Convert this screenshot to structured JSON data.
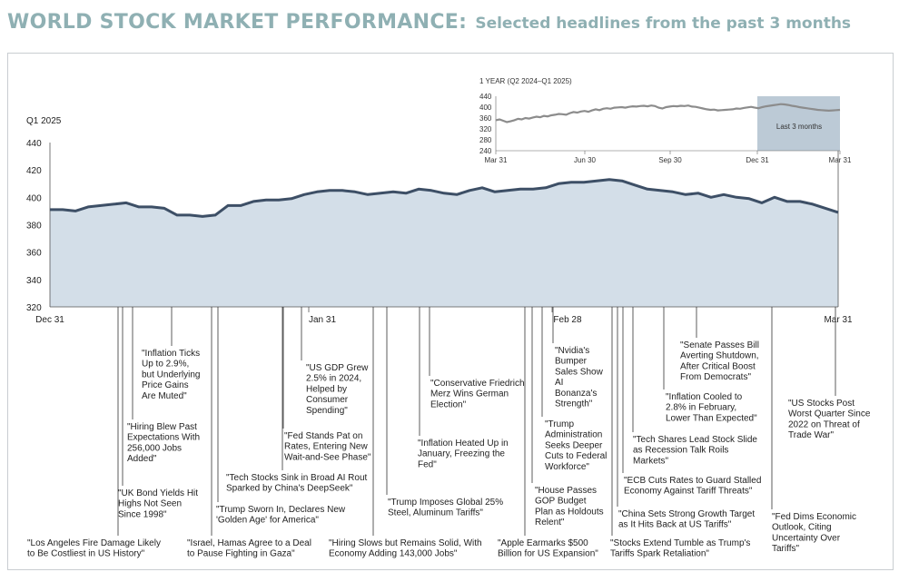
{
  "title": "WORLD STOCK MARKET PERFORMANCE:",
  "subtitle": "Selected headlines from the past 3 months",
  "chart_data": [
    {
      "type": "area",
      "series_label": "Q1 2025",
      "ylim": [
        320,
        440
      ],
      "yticks": [
        "440",
        "420",
        "400",
        "380",
        "360",
        "340",
        "320"
      ],
      "xticks": [
        "Dec 31",
        "Jan 31",
        "Feb 28",
        "Mar 31"
      ],
      "x": [
        0,
        1,
        2,
        3,
        4,
        5,
        6,
        7,
        8,
        9,
        10,
        11,
        12,
        13,
        14,
        15,
        16,
        17,
        18,
        19,
        20,
        21,
        22,
        23,
        24,
        25,
        26,
        27,
        28,
        29,
        30,
        31,
        32,
        33,
        34,
        35,
        36,
        37,
        38,
        39,
        40,
        41,
        42,
        43,
        44,
        45,
        46,
        47,
        48,
        49,
        50,
        51,
        52,
        53,
        54,
        55,
        56,
        57,
        58,
        59,
        60,
        61,
        62
      ],
      "values": [
        391,
        391,
        390,
        393,
        394,
        395,
        396,
        393,
        393,
        392,
        387,
        387,
        386,
        387,
        394,
        394,
        397,
        398,
        398,
        399,
        402,
        404,
        405,
        405,
        404,
        402,
        403,
        404,
        403,
        406,
        405,
        403,
        402,
        405,
        407,
        404,
        405,
        406,
        406,
        407,
        410,
        411,
        411,
        412,
        413,
        412,
        409,
        406,
        405,
        404,
        402,
        403,
        400,
        402,
        400,
        399,
        396,
        400,
        397,
        397,
        395,
        392,
        389
      ]
    },
    {
      "type": "line",
      "title": "1 YEAR (Q2 2024–Q1 2025)",
      "ylim": [
        240,
        440
      ],
      "yticks": [
        "440",
        "400",
        "360",
        "320",
        "280",
        "240"
      ],
      "xticks": [
        "Mar 31",
        "Jun 30",
        "Sep 30",
        "Dec 31",
        "Mar 31"
      ],
      "highlight_label": "Last 3 months",
      "values": [
        352,
        355,
        350,
        345,
        348,
        352,
        357,
        355,
        360,
        358,
        362,
        365,
        363,
        368,
        366,
        370,
        372,
        375,
        374,
        372,
        378,
        382,
        380,
        384,
        386,
        383,
        388,
        392,
        389,
        394,
        396,
        394,
        398,
        399,
        400,
        398,
        401,
        403,
        402,
        404,
        405,
        403,
        406,
        404,
        398,
        395,
        400,
        402,
        404,
        403,
        405,
        404,
        406,
        402,
        401,
        398,
        395,
        392,
        390,
        391,
        388,
        389,
        390,
        391,
        392,
        395,
        394,
        397,
        399,
        401,
        398,
        396,
        400,
        403,
        405,
        407,
        409,
        411,
        410,
        408,
        405,
        403,
        400,
        398,
        396,
        394,
        392,
        390,
        389,
        388,
        387,
        388,
        389,
        390
      ]
    }
  ],
  "annotations": [
    {
      "lines": [
        "\"Los Angeles Fire Damage Likely",
        "to Be Costliest in US History\""
      ]
    },
    {
      "lines": [
        "\"UK Bond Yields Hit",
        "Highs Not Seen",
        "Since 1998\""
      ]
    },
    {
      "lines": [
        "\"Hiring Blew Past",
        "Expectations With",
        "256,000 Jobs",
        "Added\""
      ]
    },
    {
      "lines": [
        "\"Inflation Ticks",
        "Up to 2.9%,",
        "but Underlying",
        "Price Gains",
        "Are Muted\""
      ]
    },
    {
      "lines": [
        "\"Israel, Hamas Agree to a Deal",
        "to Pause Fighting in Gaza\""
      ]
    },
    {
      "lines": [
        "\"Trump Sworn In, Declares New",
        "'Golden Age' for America\""
      ]
    },
    {
      "lines": [
        "\"Tech Stocks Sink in Broad AI Rout",
        "Sparked by China's DeepSeek\""
      ]
    },
    {
      "lines": [
        "\"Fed Stands Pat on",
        "Rates, Entering New",
        "Wait-and-See Phase\""
      ]
    },
    {
      "lines": [
        "\"US GDP Grew",
        "2.5% in 2024,",
        "Helped by",
        "Consumer",
        "Spending\""
      ]
    },
    {
      "lines": [
        "\"Hiring Slows but Remains Solid, With",
        "Economy Adding 143,000 Jobs\""
      ]
    },
    {
      "lines": [
        "\"Trump Imposes Global 25%",
        "Steel, Aluminum Tariffs\""
      ]
    },
    {
      "lines": [
        "\"Inflation Heated Up in",
        "January, Freezing the",
        "Fed\""
      ]
    },
    {
      "lines": [
        "\"Conservative Friedrich",
        "Merz Wins German",
        "Election\""
      ]
    },
    {
      "lines": [
        "\"Apple Earmarks $500",
        "Billion for US Expansion\""
      ]
    },
    {
      "lines": [
        "\"House Passes",
        "GOP Budget",
        "Plan as Holdouts",
        "Relent\""
      ]
    },
    {
      "lines": [
        "\"Trump",
        "Administration",
        "Seeks Deeper",
        "Cuts to Federal",
        "Workforce\""
      ]
    },
    {
      "lines": [
        "\"Nvidia's",
        "Bumper",
        "Sales Show",
        "AI",
        "Bonanza's",
        "Strength\""
      ]
    },
    {
      "lines": [
        "\"Stocks Extend Tumble as Trump's",
        "Tariffs Spark Retaliation\""
      ]
    },
    {
      "lines": [
        "\"China Sets Strong Growth Target",
        "as It Hits Back at US Tariffs\""
      ]
    },
    {
      "lines": [
        "\"ECB Cuts Rates to Guard Stalled",
        "Economy Against Tariff Threats\""
      ]
    },
    {
      "lines": [
        "\"Tech Shares Lead Stock Slide",
        "as Recession Talk Roils",
        "Markets\""
      ]
    },
    {
      "lines": [
        "\"Inflation Cooled to",
        "2.8% in February,",
        "Lower Than Expected\""
      ]
    },
    {
      "lines": [
        "\"Senate Passes Bill",
        "Averting Shutdown,",
        "After Critical Boost",
        "From Democrats\""
      ]
    },
    {
      "lines": [
        "\"Fed Dims Economic",
        "Outlook, Citing",
        "Uncertainty Over",
        "Tariffs\""
      ]
    },
    {
      "lines": [
        "\"US Stocks Post",
        "Worst Quarter Since",
        "2022 on Threat of",
        "Trade War\""
      ]
    }
  ],
  "colors": {
    "title": "#8fb0b3",
    "area": "#d3dee8",
    "line": "#3d4f66",
    "inset_highlight": "#bccad6"
  }
}
